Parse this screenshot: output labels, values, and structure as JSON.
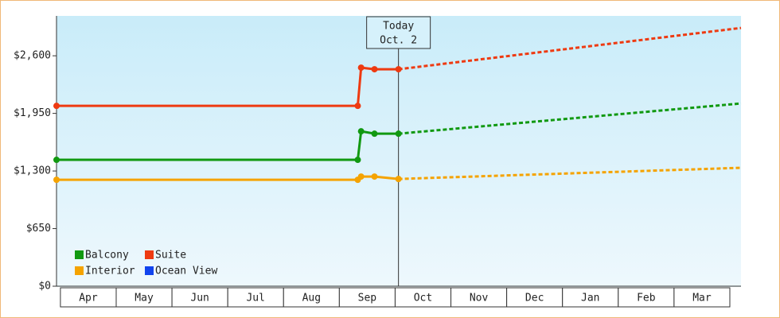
{
  "chart_data": {
    "type": "line",
    "categories": [
      "Apr",
      "May",
      "Jun",
      "Jul",
      "Aug",
      "Sep",
      "Oct",
      "Nov",
      "Dec",
      "Jan",
      "Feb",
      "Mar"
    ],
    "x": [
      -0.07,
      5.33,
      5.39,
      5.63,
      6.06,
      12.2
    ],
    "xlim": [
      -0.07,
      12.2
    ],
    "ylim": [
      0,
      3050
    ],
    "yticks": [
      {
        "value": 0,
        "label": "$0"
      },
      {
        "value": 650,
        "label": "$650"
      },
      {
        "value": 1300,
        "label": "$1,300"
      },
      {
        "value": 1950,
        "label": "$1,950"
      },
      {
        "value": 2600,
        "label": "$2,600"
      }
    ],
    "today": {
      "x": 6.06,
      "label": [
        "Today",
        "Oct. 2"
      ]
    },
    "series": [
      {
        "name": "Balcony",
        "color": "#119911",
        "values": [
          1426,
          1426,
          1748,
          1721,
          1721,
          2062
        ]
      },
      {
        "name": "Suite",
        "color": "#ee3a11",
        "values": [
          2035,
          2035,
          2466,
          2448,
          2448,
          2914
        ]
      },
      {
        "name": "Interior",
        "color": "#f5a300",
        "values": [
          1201,
          1201,
          1237,
          1237,
          1210,
          1336
        ]
      },
      {
        "name": "Ocean View",
        "color": "#1144ee",
        "values": [
          null,
          null,
          null,
          null,
          null,
          null
        ]
      }
    ]
  }
}
